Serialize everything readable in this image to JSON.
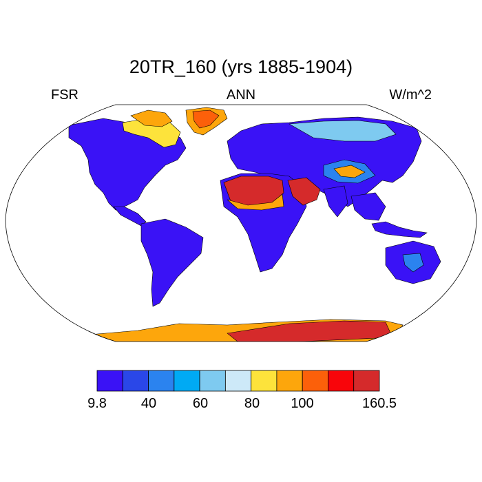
{
  "title": "20TR_160 (yrs 1885-1904)",
  "left_label": "FSR",
  "center_label": "ANN",
  "right_label": "W/m^2",
  "colorbar": {
    "colors": [
      "#3a12f6",
      "#2a47e8",
      "#2b83ef",
      "#00aaf4",
      "#7ecaf0",
      "#cde9f8",
      "#fde33b",
      "#fda60c",
      "#fc600a",
      "#f8050a",
      "#d52a2b"
    ],
    "tick_labels": [
      "9.8",
      "40",
      "60",
      "80",
      "100",
      "160.5"
    ]
  },
  "map": {
    "projection": "Robinson",
    "colors": {
      "low": "#3a12f6",
      "low2": "#2a47e8",
      "mid": "#2b83ef",
      "light": "#7ecaf0",
      "yellow": "#fde33b",
      "orange": "#fda60c",
      "dark_orange": "#fc600a",
      "red": "#f8050a",
      "dark_red": "#d52a2b"
    }
  }
}
